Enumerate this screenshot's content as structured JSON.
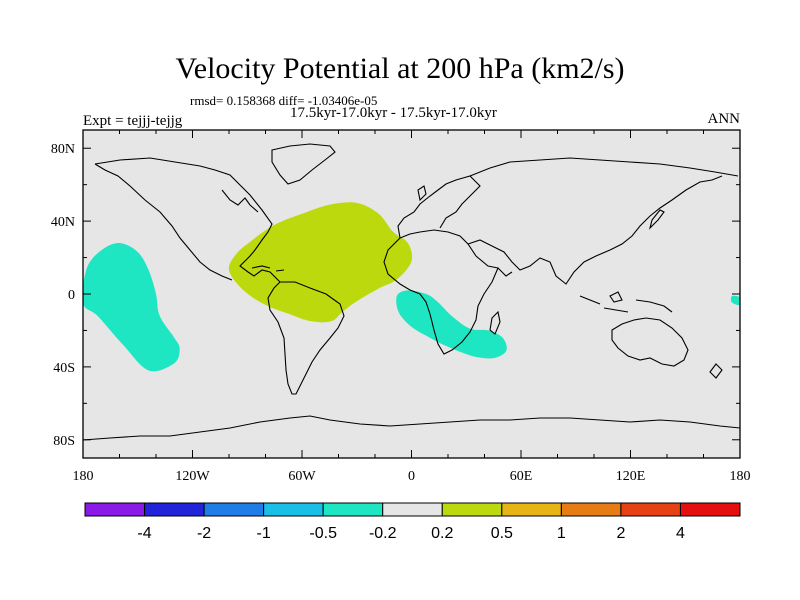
{
  "chart_data": {
    "type": "heatmap",
    "title": "Velocity Potential at 200 hPa (km2/s)",
    "stats_line": "rmsd= 0.158368 diff= -1.03406e-05",
    "subtitle": "17.5kyr-17.0kyr - 17.5kyr-17.0kyr",
    "left_label": "Expt = tejjj-tejjg",
    "right_label": "ANN",
    "x_range": [
      -180,
      180
    ],
    "y_range": [
      -90,
      90
    ],
    "x_ticks": [
      {
        "value": -180,
        "label": "180"
      },
      {
        "value": -120,
        "label": "120W"
      },
      {
        "value": -60,
        "label": "60W"
      },
      {
        "value": 0,
        "label": "0"
      },
      {
        "value": 60,
        "label": "60E"
      },
      {
        "value": 120,
        "label": "120E"
      },
      {
        "value": 180,
        "label": "180"
      }
    ],
    "y_ticks": [
      {
        "value": 80,
        "label": "80N"
      },
      {
        "value": 40,
        "label": "40N"
      },
      {
        "value": 0,
        "label": "0"
      },
      {
        "value": -40,
        "label": "40S"
      },
      {
        "value": -80,
        "label": "80S"
      }
    ],
    "colorbar": {
      "colors": [
        "#8a1ae6",
        "#2323d9",
        "#1e7de6",
        "#19bfe6",
        "#1fe6c2",
        "#e6e6e6",
        "#bcd90e",
        "#e6b414",
        "#e67d14",
        "#e64114",
        "#e60f0f"
      ],
      "boundary_labels": [
        "-4",
        "-2",
        "-1",
        "-0.5",
        "-0.2",
        "0.2",
        "0.5",
        "1",
        "2",
        "4"
      ]
    },
    "background_color": "#e6e6e6",
    "regions": [
      {
        "name": "east-pacific-negative",
        "color": "#1fe6c2",
        "coords": [
          [
            -180,
            -5
          ],
          [
            -178,
            14
          ],
          [
            -170,
            24
          ],
          [
            -160,
            28
          ],
          [
            -150,
            23
          ],
          [
            -144,
            13
          ],
          [
            -140,
            0
          ],
          [
            -138,
            -12
          ],
          [
            -130,
            -24
          ],
          [
            -127,
            -30
          ],
          [
            -130,
            -38
          ],
          [
            -144,
            -42
          ],
          [
            -158,
            -28
          ],
          [
            -172,
            -12
          ]
        ]
      },
      {
        "name": "atlantic-positive",
        "color": "#bcd90e",
        "coords": [
          [
            -100,
            13
          ],
          [
            -96,
            22
          ],
          [
            -88,
            29
          ],
          [
            -75,
            38
          ],
          [
            -60,
            44
          ],
          [
            -45,
            49
          ],
          [
            -30,
            50
          ],
          [
            -18,
            44
          ],
          [
            -10,
            34
          ],
          [
            -2,
            28
          ],
          [
            0,
            18
          ],
          [
            -8,
            8
          ],
          [
            -18,
            3
          ],
          [
            -30,
            -4
          ],
          [
            -38,
            -10
          ],
          [
            -44,
            -15
          ],
          [
            -55,
            -15
          ],
          [
            -67,
            -11
          ],
          [
            -80,
            -6
          ],
          [
            -92,
            2
          ]
        ]
      },
      {
        "name": "south-atlantic-indian-negative",
        "color": "#1fe6c2",
        "coords": [
          [
            -8,
            -1
          ],
          [
            -2,
            2
          ],
          [
            8,
            0
          ],
          [
            14,
            -4
          ],
          [
            22,
            -12
          ],
          [
            32,
            -19
          ],
          [
            42,
            -20
          ],
          [
            50,
            -24
          ],
          [
            52,
            -31
          ],
          [
            46,
            -35
          ],
          [
            38,
            -35
          ],
          [
            30,
            -33
          ],
          [
            20,
            -29
          ],
          [
            10,
            -24
          ],
          [
            0,
            -18
          ],
          [
            -7,
            -10
          ]
        ]
      },
      {
        "name": "west-pacific-negative",
        "color": "#1fe6c2",
        "coords": [
          [
            180,
            -2
          ],
          [
            176,
            -1
          ],
          [
            175,
            -3
          ],
          [
            176,
            -5
          ],
          [
            180,
            -6
          ]
        ]
      }
    ]
  }
}
